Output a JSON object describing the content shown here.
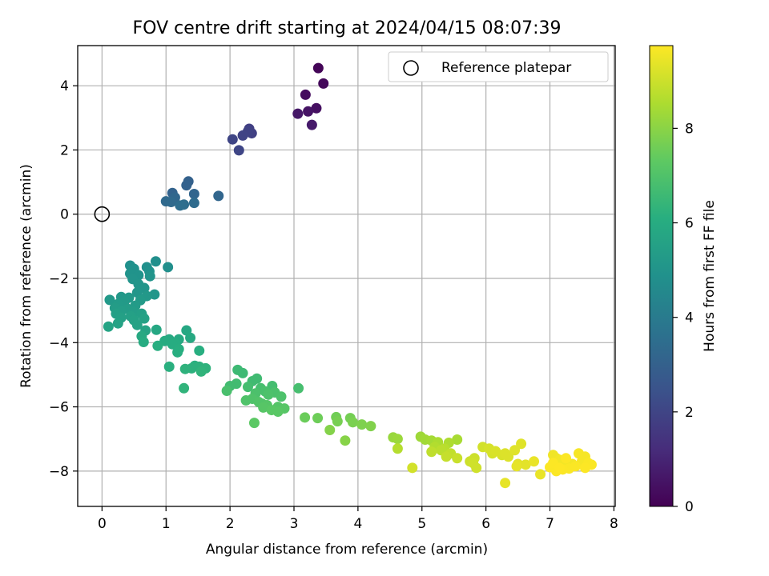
{
  "chart_data": {
    "type": "scatter",
    "title": "FOV centre drift starting at 2024/04/15 08:07:39",
    "xlabel": "Angular distance from reference (arcmin)",
    "ylabel": "Rotation from reference (arcmin)",
    "xlim": [
      -0.38,
      8.02
    ],
    "ylim": [
      -9.1,
      5.25
    ],
    "xticks": [
      0,
      1,
      2,
      3,
      4,
      5,
      6,
      7,
      8
    ],
    "xtick_labels": [
      "0",
      "1",
      "2",
      "3",
      "4",
      "5",
      "6",
      "7",
      "8"
    ],
    "yticks": [
      -8,
      -6,
      -4,
      -2,
      0,
      2,
      4
    ],
    "ytick_labels": [
      "−8",
      "−6",
      "−4",
      "−2",
      "0",
      "2",
      "4"
    ],
    "grid": true,
    "legend": {
      "placement": "upper-right",
      "entries": [
        {
          "label": "Reference platepar",
          "marker": "open-circle"
        }
      ]
    },
    "colorbar": {
      "label": "Hours from first FF file",
      "colormap": "viridis",
      "range": [
        0,
        9.75
      ],
      "ticks": [
        0,
        2,
        4,
        6,
        8
      ],
      "tick_labels": [
        "0",
        "2",
        "4",
        "6",
        "8"
      ]
    },
    "reference_point": {
      "x": 0,
      "y": 0
    },
    "points": [
      {
        "x": 3.38,
        "y": 4.55,
        "c": 0.1
      },
      {
        "x": 3.46,
        "y": 4.07,
        "c": 0.2
      },
      {
        "x": 3.18,
        "y": 3.72,
        "c": 0.3
      },
      {
        "x": 3.35,
        "y": 3.3,
        "c": 0.4
      },
      {
        "x": 3.22,
        "y": 3.2,
        "c": 0.5
      },
      {
        "x": 3.06,
        "y": 3.13,
        "c": 0.6
      },
      {
        "x": 3.28,
        "y": 2.78,
        "c": 0.7
      },
      {
        "x": 2.3,
        "y": 2.66,
        "c": 1.8
      },
      {
        "x": 2.34,
        "y": 2.52,
        "c": 1.85
      },
      {
        "x": 2.28,
        "y": 2.58,
        "c": 1.9
      },
      {
        "x": 2.2,
        "y": 2.45,
        "c": 1.95
      },
      {
        "x": 2.04,
        "y": 2.33,
        "c": 2.0
      },
      {
        "x": 2.14,
        "y": 1.99,
        "c": 2.05
      },
      {
        "x": 1.35,
        "y": 1.02,
        "c": 3.0
      },
      {
        "x": 1.32,
        "y": 0.9,
        "c": 3.05
      },
      {
        "x": 1.1,
        "y": 0.66,
        "c": 3.1
      },
      {
        "x": 1.44,
        "y": 0.63,
        "c": 3.15
      },
      {
        "x": 1.82,
        "y": 0.57,
        "c": 3.2
      },
      {
        "x": 1.14,
        "y": 0.52,
        "c": 3.25
      },
      {
        "x": 1.0,
        "y": 0.4,
        "c": 3.3
      },
      {
        "x": 1.08,
        "y": 0.38,
        "c": 3.35
      },
      {
        "x": 1.44,
        "y": 0.35,
        "c": 3.4
      },
      {
        "x": 1.28,
        "y": 0.3,
        "c": 3.45
      },
      {
        "x": 1.22,
        "y": 0.27,
        "c": 3.5
      },
      {
        "x": 0.84,
        "y": -1.47,
        "c": 4.8
      },
      {
        "x": 1.03,
        "y": -1.65,
        "c": 4.8
      },
      {
        "x": 0.44,
        "y": -1.6,
        "c": 4.85
      },
      {
        "x": 0.7,
        "y": -1.65,
        "c": 4.85
      },
      {
        "x": 0.5,
        "y": -1.7,
        "c": 4.9
      },
      {
        "x": 0.74,
        "y": -1.78,
        "c": 4.9
      },
      {
        "x": 0.44,
        "y": -1.85,
        "c": 4.95
      },
      {
        "x": 0.57,
        "y": -1.9,
        "c": 4.95
      },
      {
        "x": 0.75,
        "y": -1.93,
        "c": 5.0
      },
      {
        "x": 0.48,
        "y": -2.02,
        "c": 5.0
      },
      {
        "x": 0.57,
        "y": -2.18,
        "c": 5.05
      },
      {
        "x": 0.66,
        "y": -2.3,
        "c": 5.05
      },
      {
        "x": 0.55,
        "y": -2.44,
        "c": 5.1
      },
      {
        "x": 0.82,
        "y": -2.5,
        "c": 5.1
      },
      {
        "x": 0.7,
        "y": -2.55,
        "c": 5.15
      },
      {
        "x": 0.3,
        "y": -2.58,
        "c": 5.15
      },
      {
        "x": 0.42,
        "y": -2.6,
        "c": 5.2
      },
      {
        "x": 0.12,
        "y": -2.67,
        "c": 5.2
      },
      {
        "x": 0.6,
        "y": -2.68,
        "c": 5.25
      },
      {
        "x": 0.35,
        "y": -2.72,
        "c": 5.25
      },
      {
        "x": 0.25,
        "y": -2.8,
        "c": 5.3
      },
      {
        "x": 0.52,
        "y": -2.85,
        "c": 5.3
      },
      {
        "x": 0.2,
        "y": -2.92,
        "c": 5.35
      },
      {
        "x": 0.4,
        "y": -2.95,
        "c": 5.35
      },
      {
        "x": 0.3,
        "y": -3.02,
        "c": 5.4
      },
      {
        "x": 0.5,
        "y": -3.05,
        "c": 5.4
      },
      {
        "x": 0.22,
        "y": -3.1,
        "c": 5.45
      },
      {
        "x": 0.62,
        "y": -3.1,
        "c": 5.45
      },
      {
        "x": 0.45,
        "y": -3.18,
        "c": 5.5
      },
      {
        "x": 0.3,
        "y": -3.22,
        "c": 5.5
      },
      {
        "x": 0.66,
        "y": -3.25,
        "c": 5.55
      },
      {
        "x": 0.5,
        "y": -3.3,
        "c": 5.55
      },
      {
        "x": 0.25,
        "y": -3.4,
        "c": 5.6
      },
      {
        "x": 0.55,
        "y": -3.45,
        "c": 5.6
      },
      {
        "x": 0.1,
        "y": -3.5,
        "c": 5.65
      },
      {
        "x": 0.68,
        "y": -3.62,
        "c": 5.65
      },
      {
        "x": 0.85,
        "y": -3.6,
        "c": 5.8
      },
      {
        "x": 1.32,
        "y": -3.62,
        "c": 5.8
      },
      {
        "x": 0.62,
        "y": -3.8,
        "c": 5.85
      },
      {
        "x": 1.38,
        "y": -3.85,
        "c": 5.85
      },
      {
        "x": 1.05,
        "y": -3.9,
        "c": 5.9
      },
      {
        "x": 1.2,
        "y": -3.9,
        "c": 5.9
      },
      {
        "x": 0.98,
        "y": -3.95,
        "c": 5.95
      },
      {
        "x": 0.65,
        "y": -3.98,
        "c": 5.95
      },
      {
        "x": 1.15,
        "y": -4.02,
        "c": 6.0
      },
      {
        "x": 1.1,
        "y": -4.05,
        "c": 6.0
      },
      {
        "x": 0.87,
        "y": -4.1,
        "c": 6.05
      },
      {
        "x": 1.2,
        "y": -4.2,
        "c": 6.05
      },
      {
        "x": 1.52,
        "y": -4.25,
        "c": 6.1
      },
      {
        "x": 1.18,
        "y": -4.3,
        "c": 6.1
      },
      {
        "x": 1.05,
        "y": -4.75,
        "c": 6.15
      },
      {
        "x": 1.45,
        "y": -4.72,
        "c": 6.15
      },
      {
        "x": 1.52,
        "y": -4.75,
        "c": 6.2
      },
      {
        "x": 1.4,
        "y": -4.8,
        "c": 6.2
      },
      {
        "x": 1.3,
        "y": -4.82,
        "c": 6.25
      },
      {
        "x": 1.62,
        "y": -4.8,
        "c": 6.25
      },
      {
        "x": 1.55,
        "y": -4.9,
        "c": 6.3
      },
      {
        "x": 1.28,
        "y": -5.42,
        "c": 6.3
      },
      {
        "x": 2.12,
        "y": -4.85,
        "c": 6.6
      },
      {
        "x": 2.2,
        "y": -4.95,
        "c": 6.6
      },
      {
        "x": 2.42,
        "y": -5.12,
        "c": 6.65
      },
      {
        "x": 2.35,
        "y": -5.2,
        "c": 6.65
      },
      {
        "x": 2.1,
        "y": -5.28,
        "c": 6.7
      },
      {
        "x": 2.0,
        "y": -5.35,
        "c": 6.7
      },
      {
        "x": 2.66,
        "y": -5.35,
        "c": 6.75
      },
      {
        "x": 2.28,
        "y": -5.38,
        "c": 6.75
      },
      {
        "x": 2.48,
        "y": -5.42,
        "c": 6.8
      },
      {
        "x": 3.07,
        "y": -5.42,
        "c": 6.8
      },
      {
        "x": 1.95,
        "y": -5.5,
        "c": 6.85
      },
      {
        "x": 2.55,
        "y": -5.52,
        "c": 6.85
      },
      {
        "x": 2.7,
        "y": -5.55,
        "c": 6.9
      },
      {
        "x": 2.4,
        "y": -5.58,
        "c": 6.9
      },
      {
        "x": 2.6,
        "y": -5.62,
        "c": 6.95
      },
      {
        "x": 2.8,
        "y": -5.68,
        "c": 6.95
      },
      {
        "x": 2.35,
        "y": -5.75,
        "c": 7.0
      },
      {
        "x": 2.25,
        "y": -5.8,
        "c": 7.0
      },
      {
        "x": 2.45,
        "y": -5.85,
        "c": 7.05
      },
      {
        "x": 2.5,
        "y": -5.9,
        "c": 7.05
      },
      {
        "x": 2.58,
        "y": -5.95,
        "c": 7.1
      },
      {
        "x": 2.75,
        "y": -6.0,
        "c": 7.1
      },
      {
        "x": 2.52,
        "y": -6.02,
        "c": 7.15
      },
      {
        "x": 2.85,
        "y": -6.05,
        "c": 7.15
      },
      {
        "x": 2.65,
        "y": -6.1,
        "c": 7.2
      },
      {
        "x": 2.75,
        "y": -6.15,
        "c": 7.2
      },
      {
        "x": 2.38,
        "y": -6.5,
        "c": 7.25
      },
      {
        "x": 3.17,
        "y": -6.33,
        "c": 7.5
      },
      {
        "x": 3.37,
        "y": -6.35,
        "c": 7.55
      },
      {
        "x": 3.66,
        "y": -6.32,
        "c": 7.6
      },
      {
        "x": 3.88,
        "y": -6.35,
        "c": 7.65
      },
      {
        "x": 3.68,
        "y": -6.45,
        "c": 7.7
      },
      {
        "x": 3.92,
        "y": -6.48,
        "c": 7.75
      },
      {
        "x": 4.06,
        "y": -6.55,
        "c": 7.8
      },
      {
        "x": 4.2,
        "y": -6.6,
        "c": 7.85
      },
      {
        "x": 3.56,
        "y": -6.72,
        "c": 7.9
      },
      {
        "x": 3.8,
        "y": -7.05,
        "c": 7.95
      },
      {
        "x": 4.55,
        "y": -6.95,
        "c": 8.2
      },
      {
        "x": 4.62,
        "y": -7.0,
        "c": 8.25
      },
      {
        "x": 4.98,
        "y": -6.93,
        "c": 8.3
      },
      {
        "x": 5.05,
        "y": -7.02,
        "c": 8.35
      },
      {
        "x": 5.15,
        "y": -7.05,
        "c": 8.4
      },
      {
        "x": 5.55,
        "y": -7.02,
        "c": 8.45
      },
      {
        "x": 5.25,
        "y": -7.1,
        "c": 8.5
      },
      {
        "x": 5.42,
        "y": -7.12,
        "c": 8.55
      },
      {
        "x": 5.2,
        "y": -7.25,
        "c": 8.6
      },
      {
        "x": 4.62,
        "y": -7.3,
        "c": 8.65
      },
      {
        "x": 5.35,
        "y": -7.3,
        "c": 8.7
      },
      {
        "x": 5.3,
        "y": -7.35,
        "c": 8.75
      },
      {
        "x": 5.15,
        "y": -7.4,
        "c": 8.8
      },
      {
        "x": 5.45,
        "y": -7.45,
        "c": 8.85
      },
      {
        "x": 5.38,
        "y": -7.55,
        "c": 8.9
      },
      {
        "x": 5.55,
        "y": -7.6,
        "c": 8.95
      },
      {
        "x": 5.82,
        "y": -7.6,
        "c": 9.0
      },
      {
        "x": 5.75,
        "y": -7.7,
        "c": 9.0
      },
      {
        "x": 5.8,
        "y": -7.75,
        "c": 9.05
      },
      {
        "x": 5.85,
        "y": -7.9,
        "c": 9.05
      },
      {
        "x": 4.85,
        "y": -7.9,
        "c": 9.1
      },
      {
        "x": 5.95,
        "y": -7.25,
        "c": 9.1
      },
      {
        "x": 6.05,
        "y": -7.3,
        "c": 9.15
      },
      {
        "x": 6.1,
        "y": -7.45,
        "c": 9.15
      },
      {
        "x": 6.15,
        "y": -7.38,
        "c": 9.2
      },
      {
        "x": 6.25,
        "y": -7.5,
        "c": 9.2
      },
      {
        "x": 6.35,
        "y": -7.55,
        "c": 9.25
      },
      {
        "x": 6.3,
        "y": -7.45,
        "c": 9.25
      },
      {
        "x": 6.55,
        "y": -7.15,
        "c": 9.3
      },
      {
        "x": 6.45,
        "y": -7.35,
        "c": 9.3
      },
      {
        "x": 6.5,
        "y": -7.78,
        "c": 9.35
      },
      {
        "x": 6.62,
        "y": -7.8,
        "c": 9.35
      },
      {
        "x": 6.48,
        "y": -7.85,
        "c": 9.4
      },
      {
        "x": 6.3,
        "y": -8.37,
        "c": 9.4
      },
      {
        "x": 6.85,
        "y": -8.1,
        "c": 9.45
      },
      {
        "x": 6.75,
        "y": -7.7,
        "c": 9.45
      },
      {
        "x": 7.05,
        "y": -7.5,
        "c": 9.55
      },
      {
        "x": 7.1,
        "y": -7.6,
        "c": 9.55
      },
      {
        "x": 7.15,
        "y": -7.65,
        "c": 9.6
      },
      {
        "x": 7.25,
        "y": -7.72,
        "c": 9.6
      },
      {
        "x": 7.35,
        "y": -7.78,
        "c": 9.6
      },
      {
        "x": 7.45,
        "y": -7.45,
        "c": 9.65
      },
      {
        "x": 7.55,
        "y": -7.55,
        "c": 9.65
      },
      {
        "x": 7.5,
        "y": -7.7,
        "c": 9.65
      },
      {
        "x": 7.6,
        "y": -7.75,
        "c": 9.7
      },
      {
        "x": 7.65,
        "y": -7.8,
        "c": 9.7
      },
      {
        "x": 7.4,
        "y": -7.85,
        "c": 9.7
      },
      {
        "x": 7.3,
        "y": -7.92,
        "c": 9.7
      },
      {
        "x": 7.2,
        "y": -7.95,
        "c": 9.72
      },
      {
        "x": 7.1,
        "y": -8.0,
        "c": 9.72
      },
      {
        "x": 7.0,
        "y": -7.88,
        "c": 9.72
      },
      {
        "x": 7.05,
        "y": -7.75,
        "c": 9.74
      },
      {
        "x": 7.55,
        "y": -7.9,
        "c": 9.74
      },
      {
        "x": 7.25,
        "y": -7.6,
        "c": 9.74
      },
      {
        "x": 7.15,
        "y": -7.9,
        "c": 9.75
      }
    ]
  }
}
